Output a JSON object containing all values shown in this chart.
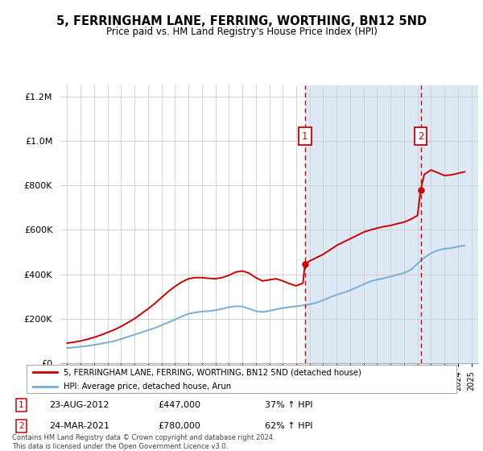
{
  "title": "5, FERRINGHAM LANE, FERRING, WORTHING, BN12 5ND",
  "subtitle": "Price paid vs. HM Land Registry's House Price Index (HPI)",
  "legend_label_red": "5, FERRINGHAM LANE, FERRING, WORTHING, BN12 5ND (detached house)",
  "legend_label_blue": "HPI: Average price, detached house, Arun",
  "annotation1_label": "1",
  "annotation1_date": "23-AUG-2012",
  "annotation1_price": "£447,000",
  "annotation1_hpi": "37% ↑ HPI",
  "annotation2_label": "2",
  "annotation2_date": "24-MAR-2021",
  "annotation2_price": "£780,000",
  "annotation2_hpi": "62% ↑ HPI",
  "footer": "Contains HM Land Registry data © Crown copyright and database right 2024.\nThis data is licensed under the Open Government Licence v3.0.",
  "bg_shaded_color": "#dce9f5",
  "red_color": "#cc0000",
  "blue_color": "#7aadd4",
  "ylim": [
    0,
    1250000
  ],
  "yticks": [
    0,
    200000,
    400000,
    600000,
    800000,
    1000000,
    1200000
  ],
  "xlim_start": 1994.5,
  "xlim_end": 2025.5,
  "sale1_x": 2012.645,
  "sale1_y": 447000,
  "sale2_x": 2021.23,
  "sale2_y": 780000,
  "hpi_x": [
    1995.0,
    1995.5,
    1996.0,
    1996.5,
    1997.0,
    1997.5,
    1998.0,
    1998.5,
    1999.0,
    1999.5,
    2000.0,
    2000.5,
    2001.0,
    2001.5,
    2002.0,
    2002.5,
    2003.0,
    2003.5,
    2004.0,
    2004.5,
    2005.0,
    2005.5,
    2006.0,
    2006.5,
    2007.0,
    2007.5,
    2008.0,
    2008.5,
    2009.0,
    2009.5,
    2010.0,
    2010.5,
    2011.0,
    2011.5,
    2012.0,
    2012.5,
    2013.0,
    2013.5,
    2014.0,
    2014.5,
    2015.0,
    2015.5,
    2016.0,
    2016.5,
    2017.0,
    2017.5,
    2018.0,
    2018.5,
    2019.0,
    2019.5,
    2020.0,
    2020.5,
    2021.0,
    2021.5,
    2022.0,
    2022.5,
    2023.0,
    2023.5,
    2024.0,
    2024.5
  ],
  "hpi_y": [
    68000,
    70000,
    74000,
    77000,
    82000,
    87000,
    93000,
    99000,
    108000,
    118000,
    128000,
    138000,
    148000,
    158000,
    170000,
    183000,
    196000,
    210000,
    222000,
    228000,
    232000,
    234000,
    238000,
    244000,
    252000,
    256000,
    255000,
    245000,
    234000,
    230000,
    235000,
    242000,
    248000,
    252000,
    256000,
    260000,
    265000,
    272000,
    283000,
    296000,
    308000,
    317000,
    328000,
    341000,
    355000,
    368000,
    376000,
    382000,
    390000,
    398000,
    406000,
    420000,
    448000,
    475000,
    495000,
    508000,
    515000,
    518000,
    525000,
    530000
  ],
  "price_x": [
    1995.0,
    1995.5,
    1996.0,
    1996.5,
    1997.0,
    1997.5,
    1998.0,
    1998.5,
    1999.0,
    1999.5,
    2000.0,
    2000.5,
    2001.0,
    2001.5,
    2002.0,
    2002.5,
    2003.0,
    2003.5,
    2004.0,
    2004.5,
    2005.0,
    2005.5,
    2006.0,
    2006.5,
    2007.0,
    2007.5,
    2008.0,
    2008.5,
    2009.0,
    2009.5,
    2010.0,
    2010.5,
    2011.0,
    2011.5,
    2012.0,
    2012.5,
    2012.645,
    2013.0,
    2013.5,
    2014.0,
    2014.5,
    2015.0,
    2015.5,
    2016.0,
    2016.5,
    2017.0,
    2017.5,
    2018.0,
    2018.5,
    2019.0,
    2019.5,
    2020.0,
    2020.5,
    2021.0,
    2021.23,
    2021.5,
    2022.0,
    2022.5,
    2023.0,
    2023.5,
    2024.0,
    2024.5
  ],
  "price_y": [
    90000,
    94000,
    100000,
    107000,
    116000,
    126000,
    138000,
    150000,
    165000,
    182000,
    200000,
    222000,
    244000,
    268000,
    295000,
    322000,
    345000,
    365000,
    380000,
    385000,
    385000,
    382000,
    380000,
    385000,
    395000,
    410000,
    415000,
    405000,
    385000,
    370000,
    375000,
    380000,
    370000,
    358000,
    348000,
    360000,
    447000,
    460000,
    475000,
    490000,
    510000,
    530000,
    545000,
    560000,
    575000,
    590000,
    600000,
    608000,
    615000,
    620000,
    628000,
    635000,
    648000,
    665000,
    780000,
    850000,
    870000,
    858000,
    845000,
    848000,
    855000,
    862000
  ]
}
